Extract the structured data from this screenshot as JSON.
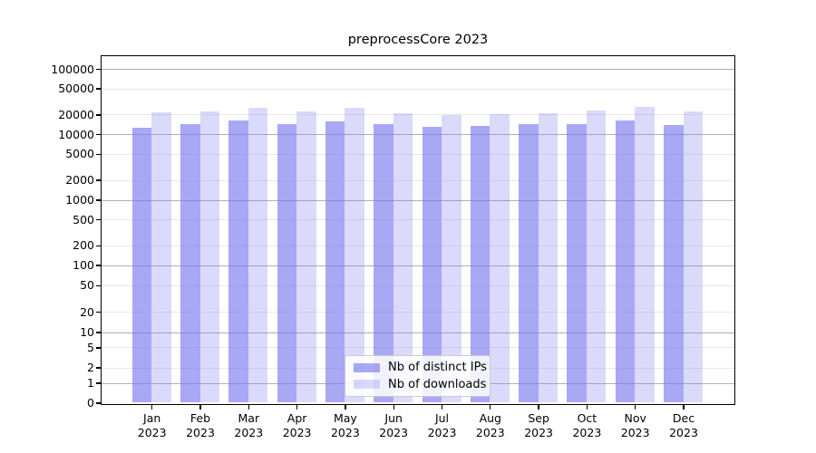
{
  "chart_data": {
    "type": "bar",
    "title": "preprocessCore 2023",
    "x": {
      "months": [
        "Jan",
        "Feb",
        "Mar",
        "Apr",
        "May",
        "Jun",
        "Jul",
        "Aug",
        "Sep",
        "Oct",
        "Nov",
        "Dec"
      ],
      "year": "2023"
    },
    "series": [
      {
        "name": "Nb of distinct IPs",
        "color": "#7a7af0",
        "alpha": 0.65,
        "values": [
          12700,
          14400,
          15900,
          14000,
          15800,
          14200,
          13100,
          13400,
          14300,
          14400,
          16300,
          13600
        ]
      },
      {
        "name": "Nb of downloads",
        "color": "#7a7af0",
        "alpha": 0.28,
        "values": [
          21300,
          22600,
          25400,
          21900,
          25100,
          21200,
          19400,
          20100,
          20900,
          23300,
          25700,
          21900
        ]
      }
    ],
    "yticks": [
      0,
      1,
      2,
      5,
      10,
      20,
      50,
      100,
      200,
      500,
      1000,
      2000,
      5000,
      10000,
      20000,
      50000,
      100000
    ],
    "yscale": "log (zero shown at baseline)",
    "ylim": [
      0,
      100000
    ],
    "grid": {
      "major_color": "#b0b0b0",
      "minor_color": "#e8e8e8",
      "major_at": "powers of 10"
    },
    "legend": {
      "position": "lower center"
    }
  }
}
